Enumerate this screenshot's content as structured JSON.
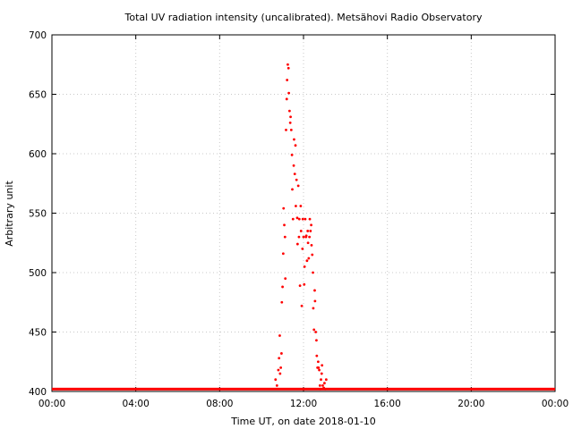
{
  "chart_data": {
    "type": "scatter",
    "title": "Total UV radiation intensity (uncalibrated). Metsähovi Radio Observatory",
    "xlabel": "Time UT, on date 2018-01-10",
    "ylabel": "Arbitrary unit",
    "xlim": [
      "00:00",
      "24:00"
    ],
    "ylim": [
      400,
      700
    ],
    "x_ticks": [
      "00:00",
      "04:00",
      "08:00",
      "12:00",
      "16:00",
      "20:00",
      "00:00"
    ],
    "y_ticks": [
      400,
      450,
      500,
      550,
      600,
      650,
      700
    ],
    "grid": true,
    "marker_color": "#ff0000",
    "baseline": {
      "value": 402,
      "from": "00:00",
      "to": "24:00"
    },
    "series": [
      {
        "x": [
          "10:40",
          "10:44",
          "10:48",
          "10:50",
          "10:52",
          "10:53",
          "10:55",
          "10:57",
          "10:58",
          "11:00",
          "11:02",
          "11:03",
          "11:05",
          "11:07",
          "11:08",
          "11:10",
          "11:12",
          "11:13",
          "11:15",
          "11:17",
          "11:18",
          "11:20",
          "11:22",
          "11:23",
          "11:25",
          "11:27",
          "11:28",
          "11:30",
          "11:32",
          "11:33",
          "11:35",
          "11:37",
          "11:38",
          "11:40",
          "11:42",
          "11:43",
          "11:45",
          "11:47",
          "11:48",
          "11:50",
          "11:52",
          "11:53",
          "11:55",
          "11:57",
          "11:58",
          "12:00",
          "12:02",
          "12:03",
          "12:05",
          "12:07",
          "12:08",
          "12:10",
          "12:12",
          "12:13",
          "12:15",
          "12:17",
          "12:18",
          "12:20",
          "12:22",
          "12:23",
          "12:25",
          "12:27",
          "12:28",
          "12:30",
          "12:32",
          "12:33",
          "12:35",
          "12:37",
          "12:38",
          "12:40",
          "12:42",
          "12:43",
          "12:45",
          "12:47",
          "12:48",
          "12:50",
          "12:52",
          "12:53",
          "12:55",
          "12:58",
          "13:00",
          "13:02",
          "13:05"
        ],
        "y": [
          410,
          405,
          418,
          428,
          447,
          415,
          420,
          432,
          475,
          488,
          516,
          554,
          540,
          530,
          495,
          620,
          646,
          662,
          675,
          672,
          651,
          636,
          626,
          631,
          620,
          599,
          570,
          545,
          590,
          612,
          583,
          607,
          556,
          578,
          546,
          524,
          573,
          530,
          545,
          489,
          556,
          535,
          472,
          520,
          545,
          530,
          490,
          505,
          545,
          530,
          531,
          510,
          535,
          525,
          512,
          530,
          545,
          535,
          540,
          523,
          515,
          500,
          470,
          452,
          485,
          476,
          450,
          443,
          430,
          420,
          425,
          420,
          418,
          405,
          402,
          410,
          415,
          422,
          405,
          403,
          407,
          402,
          410
        ]
      }
    ]
  }
}
